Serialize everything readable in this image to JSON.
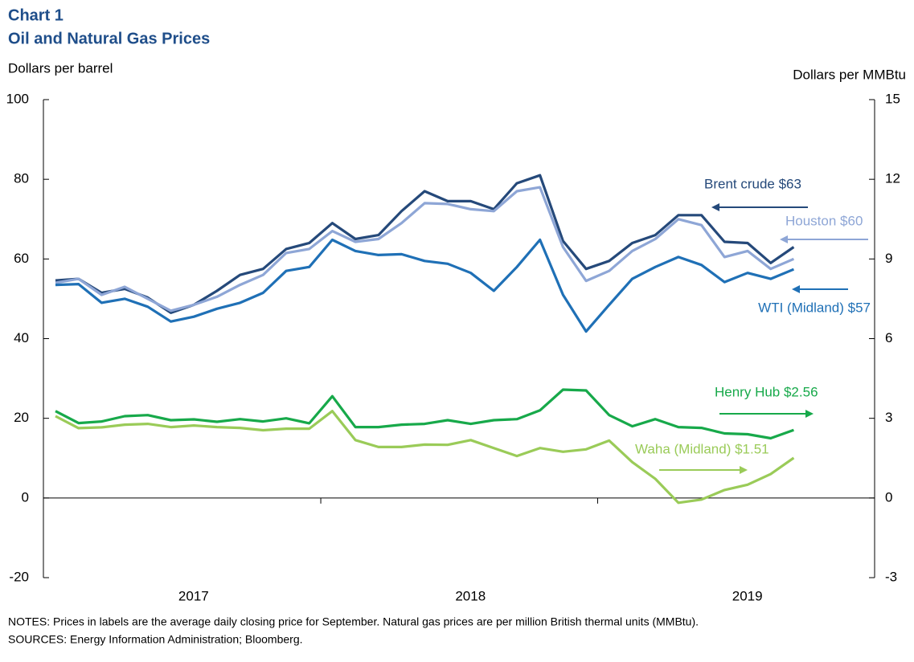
{
  "chart_data": {
    "type": "line",
    "title": "Chart 1",
    "subtitle": "Oil and Natural Gas Prices",
    "y_label": "Dollars per barrel",
    "y2_label": "Dollars per MMBtu",
    "notes": [
      "NOTES:  Prices in labels are the average daily closing price for September. Natural gas prices are per million British thermal units (MMBtu).",
      "SOURCES:  Energy Information Administration; Bloomberg."
    ],
    "year_labels": [
      "2017",
      "2018",
      "2019"
    ],
    "categories": [
      null,
      null,
      null,
      null,
      null,
      null,
      null,
      null,
      null,
      null,
      null,
      null,
      null,
      null,
      null,
      null,
      null,
      null,
      null,
      null,
      null,
      null,
      null,
      null,
      null,
      null,
      null,
      null,
      null,
      null,
      null,
      null,
      null
    ],
    "ylim": [
      -20,
      100
    ],
    "yticks": [
      -20,
      0,
      20,
      40,
      60,
      80,
      100
    ],
    "y2lim": [
      -3,
      15
    ],
    "y2ticks": [
      -3,
      0,
      3,
      6,
      9,
      12,
      15
    ],
    "grid": false,
    "series": [
      {
        "name": "Brent crude $63",
        "color": "#25497a",
        "values": [
          54.6,
          55,
          51.5,
          52.5,
          50.3,
          46.5,
          48.5,
          52,
          56,
          57.5,
          62.5,
          64,
          69,
          65,
          66,
          72,
          77,
          74.5,
          74.5,
          72.5,
          79,
          81,
          64.5,
          57.5,
          59.5,
          64,
          66,
          71,
          71,
          64.3,
          64,
          59,
          63
        ]
      },
      {
        "name": "Houston $60",
        "color": "#8ea6d6",
        "values": [
          54,
          55,
          51,
          53,
          50,
          47,
          48.5,
          50.5,
          53.5,
          56,
          61.5,
          62.5,
          67,
          64.3,
          65,
          69,
          74,
          73.8,
          72.5,
          72,
          77,
          78,
          63,
          54.5,
          57,
          62,
          65,
          70,
          68.5,
          60.5,
          62,
          57.5,
          60
        ]
      },
      {
        "name": "WTI (Midland) $57",
        "color": "#1f70b6",
        "values": [
          53.5,
          53.7,
          49,
          50,
          48,
          44.3,
          45.5,
          47.5,
          49,
          51.5,
          57,
          58,
          64.8,
          62,
          61,
          61.2,
          59.5,
          58.8,
          56.5,
          52,
          58,
          64.8,
          51,
          41.8,
          48.5,
          55,
          58,
          60.5,
          58.5,
          54.2,
          56.5,
          55,
          57.4
        ]
      },
      {
        "name": "Henry Hub $2.56",
        "color": "#17a94a",
        "axis": "y2",
        "values": [
          3.27,
          2.82,
          2.88,
          3.08,
          3.12,
          2.93,
          2.96,
          2.87,
          2.97,
          2.88,
          3.0,
          2.81,
          3.83,
          2.67,
          2.67,
          2.76,
          2.79,
          2.93,
          2.79,
          2.93,
          2.97,
          3.3,
          4.08,
          4.05,
          3.12,
          2.7,
          2.97,
          2.67,
          2.64,
          2.43,
          2.4,
          2.25,
          2.56
        ]
      },
      {
        "name": "Waha (Midland) $1.51",
        "color": "#9acb58",
        "axis": "y2",
        "values": [
          3.08,
          2.63,
          2.66,
          2.76,
          2.79,
          2.67,
          2.73,
          2.67,
          2.64,
          2.55,
          2.61,
          2.61,
          3.27,
          2.18,
          1.92,
          1.92,
          2.01,
          2.0,
          2.18,
          1.88,
          1.58,
          1.88,
          1.74,
          1.83,
          2.16,
          1.35,
          0.72,
          -0.18,
          -0.06,
          0.3,
          0.5,
          0.9,
          1.51
        ]
      }
    ]
  }
}
